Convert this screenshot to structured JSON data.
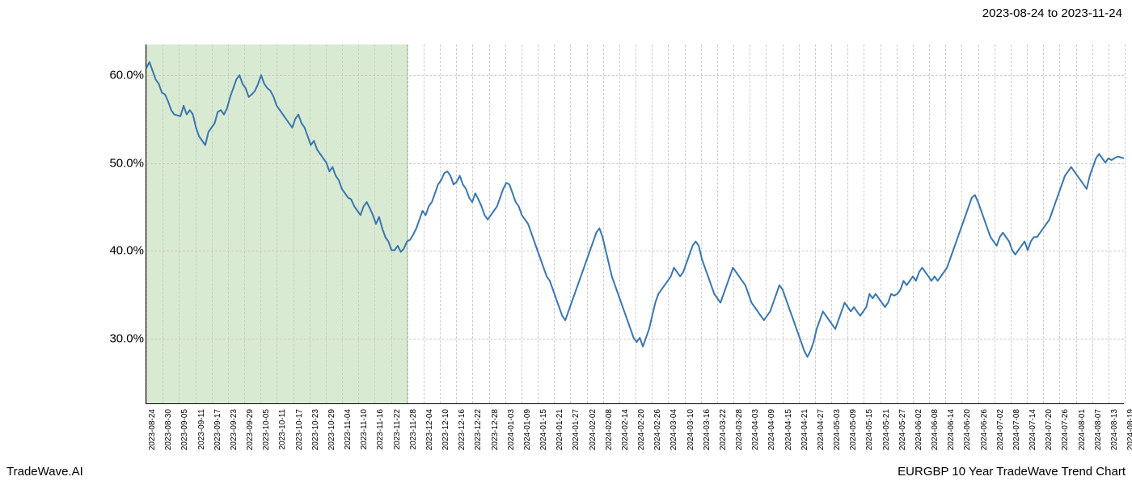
{
  "header": {
    "date_range": "2023-08-24 to 2023-11-24"
  },
  "footer": {
    "left": "TradeWave.AI",
    "right": "EURGBP 10 Year TradeWave Trend Chart"
  },
  "chart": {
    "type": "line",
    "background_color": "#ffffff",
    "line_color": "#3a76af",
    "line_width": 2,
    "highlight_fill": "#d9ead3",
    "highlight_border": "#a8c49a",
    "grid_color": "#cccccc",
    "axis_color": "#000000",
    "ylim": [
      22.5,
      63.5
    ],
    "y_ticks": [
      30.0,
      40.0,
      50.0,
      60.0
    ],
    "y_tick_labels": [
      "30.0%",
      "40.0%",
      "50.0%",
      "60.0%"
    ],
    "y_label_fontsize": 15,
    "x_label_fontsize": 10,
    "highlight_start_index": 0,
    "highlight_end_index": 16,
    "x_labels": [
      "2023-08-24",
      "2023-08-30",
      "2023-09-05",
      "2023-09-11",
      "2023-09-17",
      "2023-09-23",
      "2023-09-29",
      "2023-10-05",
      "2023-10-11",
      "2023-10-17",
      "2023-10-23",
      "2023-10-29",
      "2023-11-04",
      "2023-11-10",
      "2023-11-16",
      "2023-11-22",
      "2023-11-28",
      "2023-12-04",
      "2023-12-10",
      "2023-12-16",
      "2023-12-22",
      "2023-12-28",
      "2024-01-03",
      "2024-01-09",
      "2024-01-15",
      "2024-01-21",
      "2024-01-27",
      "2024-02-02",
      "2024-02-08",
      "2024-02-14",
      "2024-02-20",
      "2024-02-26",
      "2024-03-04",
      "2024-03-10",
      "2024-03-16",
      "2024-03-22",
      "2024-03-28",
      "2024-04-03",
      "2024-04-09",
      "2024-04-15",
      "2024-04-21",
      "2024-04-27",
      "2024-05-03",
      "2024-05-09",
      "2024-05-15",
      "2024-05-21",
      "2024-05-27",
      "2024-06-02",
      "2024-06-08",
      "2024-06-14",
      "2024-06-20",
      "2024-06-26",
      "2024-07-02",
      "2024-07-08",
      "2024-07-14",
      "2024-07-20",
      "2024-07-26",
      "2024-08-01",
      "2024-08-07",
      "2024-08-13",
      "2024-08-19"
    ],
    "series": [
      60.8,
      61.5,
      60.5,
      59.5,
      59.0,
      58.0,
      57.8,
      57.0,
      56.0,
      55.5,
      55.4,
      55.3,
      56.5,
      55.5,
      56.0,
      55.5,
      54.0,
      53.0,
      52.5,
      52.0,
      53.5,
      54.0,
      54.5,
      55.8,
      56.0,
      55.5,
      56.2,
      57.5,
      58.5,
      59.5,
      60.0,
      59.0,
      58.5,
      57.5,
      57.8,
      58.2,
      59.0,
      60.0,
      59.0,
      58.5,
      58.2,
      57.5,
      56.5,
      56.0,
      55.5,
      55.0,
      54.5,
      54.0,
      55.0,
      55.5,
      54.5,
      54.0,
      53.0,
      52.0,
      52.5,
      51.5,
      51.0,
      50.5,
      50.0,
      49.0,
      49.5,
      48.5,
      48.0,
      47.0,
      46.5,
      46.0,
      45.8,
      45.0,
      44.5,
      44.0,
      45.0,
      45.5,
      44.8,
      44.0,
      43.0,
      43.8,
      42.5,
      41.5,
      41.0,
      40.0,
      40.0,
      40.5,
      39.8,
      40.2,
      41.0,
      41.2,
      41.8,
      42.5,
      43.5,
      44.5,
      44.0,
      45.0,
      45.5,
      46.5,
      47.5,
      48.0,
      48.8,
      49.0,
      48.5,
      47.5,
      47.8,
      48.5,
      47.5,
      47.0,
      46.0,
      45.5,
      46.5,
      45.8,
      45.0,
      44.0,
      43.5,
      44.0,
      44.5,
      45.0,
      46.0,
      47.0,
      47.7,
      47.5,
      46.5,
      45.5,
      45.0,
      44.0,
      43.5,
      43.0,
      42.0,
      41.0,
      40.0,
      39.0,
      38.0,
      37.0,
      36.5,
      35.5,
      34.5,
      33.5,
      32.5,
      32.0,
      33.0,
      34.0,
      35.0,
      36.0,
      37.0,
      38.0,
      39.0,
      40.0,
      41.0,
      42.0,
      42.5,
      41.5,
      40.0,
      38.5,
      37.0,
      36.0,
      35.0,
      34.0,
      33.0,
      32.0,
      31.0,
      30.0,
      29.5,
      30.0,
      29.0,
      30.0,
      31.0,
      32.5,
      34.0,
      35.0,
      35.5,
      36.0,
      36.5,
      37.0,
      38.0,
      37.5,
      37.0,
      37.5,
      38.5,
      39.5,
      40.5,
      41.0,
      40.5,
      39.0,
      38.0,
      37.0,
      36.0,
      35.0,
      34.5,
      34.0,
      35.0,
      36.0,
      37.0,
      38.0,
      37.5,
      37.0,
      36.5,
      36.0,
      35.0,
      34.0,
      33.5,
      33.0,
      32.5,
      32.0,
      32.5,
      33.0,
      34.0,
      35.0,
      36.0,
      35.5,
      34.5,
      33.5,
      32.5,
      31.5,
      30.5,
      29.5,
      28.5,
      27.8,
      28.5,
      29.5,
      31.0,
      32.0,
      33.0,
      32.5,
      32.0,
      31.5,
      31.0,
      32.0,
      33.0,
      34.0,
      33.5,
      33.0,
      33.5,
      33.0,
      32.5,
      33.0,
      33.5,
      35.0,
      34.5,
      35.0,
      34.5,
      34.0,
      33.5,
      34.0,
      35.0,
      34.8,
      35.0,
      35.5,
      36.5,
      36.0,
      36.5,
      37.0,
      36.5,
      37.5,
      38.0,
      37.5,
      37.0,
      36.5,
      37.0,
      36.5,
      37.0,
      37.5,
      38.0,
      39.0,
      40.0,
      41.0,
      42.0,
      43.0,
      44.0,
      45.0,
      46.0,
      46.3,
      45.5,
      44.5,
      43.5,
      42.5,
      41.5,
      41.0,
      40.5,
      41.5,
      42.0,
      41.5,
      41.0,
      40.0,
      39.5,
      40.0,
      40.5,
      41.0,
      40.0,
      41.0,
      41.5,
      41.5,
      42.0,
      42.5,
      43.0,
      43.5,
      44.5,
      45.5,
      46.5,
      47.5,
      48.5,
      49.0,
      49.5,
      49.0,
      48.5,
      48.0,
      47.5,
      47.0,
      48.5,
      49.5,
      50.5,
      51.0,
      50.5,
      50.0,
      50.5,
      50.3,
      50.5,
      50.7,
      50.6,
      50.5
    ]
  }
}
